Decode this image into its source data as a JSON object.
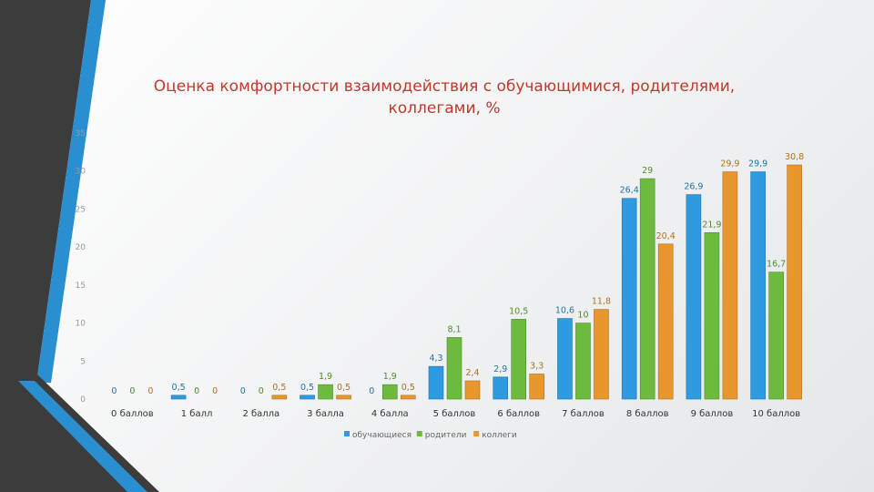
{
  "chart_data": {
    "type": "bar",
    "title_lines": [
      "Оценка комфортности взаимодействия с обучающимися, родителями,",
      "коллегами, %"
    ],
    "categories": [
      "0 баллов",
      "1 балл",
      "2 балла",
      "3 балла",
      "4 балла",
      "5 баллов",
      "6 баллов",
      "7 баллов",
      "8 баллов",
      "9 баллов",
      "10 баллов"
    ],
    "series": [
      {
        "name": "обучающиеся",
        "color": "#2e9ae0",
        "values": [
          0,
          0.5,
          0,
          0.5,
          0,
          4.3,
          2.9,
          10.6,
          26.4,
          26.9,
          29.9
        ]
      },
      {
        "name": "родители",
        "color": "#6cbb3c",
        "values": [
          0,
          0,
          0,
          1.9,
          1.9,
          8.1,
          10.5,
          10,
          29,
          21.9,
          16.7
        ]
      },
      {
        "name": "коллеги",
        "color": "#e8962e",
        "values": [
          0,
          0,
          0.5,
          0.5,
          0.5,
          2.4,
          3.3,
          11.8,
          20.4,
          29.9,
          30.8
        ]
      }
    ],
    "data_labels": [
      [
        "0",
        "0,5",
        "0",
        "0,5",
        "0",
        "4,3",
        "2,9",
        "10,6",
        "26,4",
        "26,9",
        "29,9"
      ],
      [
        "0",
        "0",
        "0",
        "1,9",
        "1,9",
        "8,1",
        "10,5",
        "10",
        "29",
        "21,9",
        "16,7"
      ],
      [
        "0",
        "0",
        "0,5",
        "0,5",
        "0,5",
        "2,4",
        "3,3",
        "11,8",
        "20,4",
        "29,9",
        "30,8"
      ]
    ],
    "ylim": [
      0,
      35
    ],
    "yticks": [
      "0",
      "5",
      "10",
      "15",
      "20",
      "25",
      "30",
      "35"
    ],
    "legend_position": "bottom",
    "grid": false
  }
}
